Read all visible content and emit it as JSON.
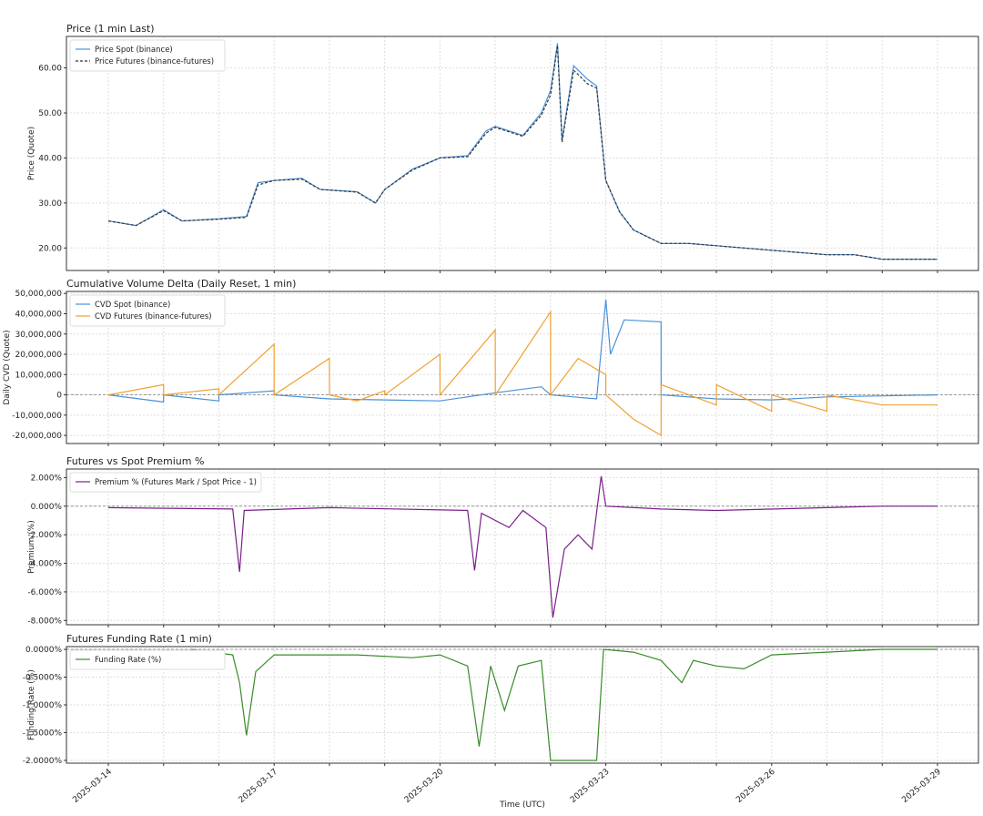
{
  "chart_data": [
    {
      "type": "line",
      "title": "Price (1 min Last)",
      "xlabel": "",
      "ylabel": "Price (Quote)",
      "ylim": [
        15,
        67
      ],
      "yticks": [
        "20.00",
        "30.00",
        "40.00",
        "50.00",
        "60.00"
      ],
      "ytick_values": [
        20,
        30,
        40,
        50,
        60
      ],
      "grid": true,
      "legend": "top-left",
      "series": [
        {
          "name": "Price Spot (binance)",
          "color": "#4a90d9",
          "style": "solid",
          "points": [
            [
              "2025-03-14T00:00",
              26
            ],
            [
              "2025-03-14T12:00",
              25
            ],
            [
              "2025-03-15T00:00",
              28.5
            ],
            [
              "2025-03-15T08:00",
              26
            ],
            [
              "2025-03-16T00:00",
              26.5
            ],
            [
              "2025-03-16T12:00",
              27
            ],
            [
              "2025-03-16T17:00",
              34.5
            ],
            [
              "2025-03-17T00:00",
              35
            ],
            [
              "2025-03-17T12:00",
              35.5
            ],
            [
              "2025-03-17T20:00",
              33
            ],
            [
              "2025-03-18T12:00",
              32.5
            ],
            [
              "2025-03-18T20:00",
              30
            ],
            [
              "2025-03-19T00:00",
              33
            ],
            [
              "2025-03-19T12:00",
              37.5
            ],
            [
              "2025-03-20T00:00",
              40
            ],
            [
              "2025-03-20T12:00",
              40.5
            ],
            [
              "2025-03-20T20:00",
              46
            ],
            [
              "2025-03-21T00:00",
              47
            ],
            [
              "2025-03-21T12:00",
              45
            ],
            [
              "2025-03-21T20:00",
              50
            ],
            [
              "2025-03-22T00:00",
              55
            ],
            [
              "2025-03-22T03:00",
              65.5
            ],
            [
              "2025-03-22T05:00",
              44
            ],
            [
              "2025-03-22T10:00",
              60.5
            ],
            [
              "2025-03-22T16:00",
              57.5
            ],
            [
              "2025-03-22T20:00",
              56
            ],
            [
              "2025-03-23T00:00",
              35
            ],
            [
              "2025-03-23T06:00",
              28
            ],
            [
              "2025-03-23T12:00",
              24
            ],
            [
              "2025-03-24T00:00",
              21
            ],
            [
              "2025-03-24T12:00",
              21
            ],
            [
              "2025-03-25T00:00",
              20.5
            ],
            [
              "2025-03-26T00:00",
              19.5
            ],
            [
              "2025-03-27T00:00",
              18.5
            ],
            [
              "2025-03-27T12:00",
              18.5
            ],
            [
              "2025-03-28T00:00",
              17.5
            ],
            [
              "2025-03-29T00:00",
              17.5
            ]
          ]
        },
        {
          "name": "Price Futures (binance-futures)",
          "color": "#333333",
          "style": "dashed",
          "points": [
            [
              "2025-03-14T00:00",
              26
            ],
            [
              "2025-03-14T12:00",
              25
            ],
            [
              "2025-03-15T00:00",
              28.3
            ],
            [
              "2025-03-15T08:00",
              26
            ],
            [
              "2025-03-16T00:00",
              26.4
            ],
            [
              "2025-03-16T12:00",
              26.8
            ],
            [
              "2025-03-16T17:00",
              34
            ],
            [
              "2025-03-17T00:00",
              35
            ],
            [
              "2025-03-17T12:00",
              35.3
            ],
            [
              "2025-03-17T20:00",
              33
            ],
            [
              "2025-03-18T12:00",
              32.4
            ],
            [
              "2025-03-18T20:00",
              30
            ],
            [
              "2025-03-19T00:00",
              33
            ],
            [
              "2025-03-19T12:00",
              37.3
            ],
            [
              "2025-03-20T00:00",
              40
            ],
            [
              "2025-03-20T12:00",
              40.3
            ],
            [
              "2025-03-20T20:00",
              45.5
            ],
            [
              "2025-03-21T00:00",
              46.8
            ],
            [
              "2025-03-21T12:00",
              44.8
            ],
            [
              "2025-03-21T20:00",
              49.5
            ],
            [
              "2025-03-22T00:00",
              54
            ],
            [
              "2025-03-22T03:00",
              65
            ],
            [
              "2025-03-22T05:00",
              43.5
            ],
            [
              "2025-03-22T10:00",
              59.5
            ],
            [
              "2025-03-22T16:00",
              56.5
            ],
            [
              "2025-03-22T20:00",
              55.5
            ],
            [
              "2025-03-23T00:00",
              35
            ],
            [
              "2025-03-23T06:00",
              28
            ],
            [
              "2025-03-23T12:00",
              24
            ],
            [
              "2025-03-24T00:00",
              21
            ],
            [
              "2025-03-24T12:00",
              21
            ],
            [
              "2025-03-25T00:00",
              20.5
            ],
            [
              "2025-03-26T00:00",
              19.5
            ],
            [
              "2025-03-27T00:00",
              18.5
            ],
            [
              "2025-03-27T12:00",
              18.5
            ],
            [
              "2025-03-28T00:00",
              17.5
            ],
            [
              "2025-03-29T00:00",
              17.5
            ]
          ]
        }
      ]
    },
    {
      "type": "line",
      "title": "Cumulative Volume Delta (Daily Reset, 1 min)",
      "xlabel": "",
      "ylabel": "Daily CVD (Quote)",
      "ylim": [
        -24000000,
        51000000
      ],
      "yticks": [
        "-20,000,000",
        "-10,000,000",
        "0",
        "10,000,000",
        "20,000,000",
        "30,000,000",
        "40,000,000",
        "50,000,000"
      ],
      "ytick_values": [
        -20000000,
        -10000000,
        0,
        10000000,
        20000000,
        30000000,
        40000000,
        50000000
      ],
      "grid": true,
      "legend": "top-left",
      "zero_line": true,
      "series": [
        {
          "name": "CVD Spot (binance)",
          "color": "#4a90d9",
          "points": [
            [
              "2025-03-14T00:00",
              0
            ],
            [
              "2025-03-15T00:00",
              -3500000
            ],
            [
              "2025-03-15T00:01",
              0
            ],
            [
              "2025-03-16T00:00",
              -3000000
            ],
            [
              "2025-03-16T00:01",
              0
            ],
            [
              "2025-03-17T00:00",
              2000000
            ],
            [
              "2025-03-17T00:01",
              0
            ],
            [
              "2025-03-18T00:00",
              -2000000
            ],
            [
              "2025-03-19T00:00",
              -2500000
            ],
            [
              "2025-03-20T00:00",
              -3000000
            ],
            [
              "2025-03-21T00:00",
              1000000
            ],
            [
              "2025-03-21T20:00",
              4000000
            ],
            [
              "2025-03-22T00:00",
              0
            ],
            [
              "2025-03-22T20:00",
              -2000000
            ],
            [
              "2025-03-23T00:00",
              47000000
            ],
            [
              "2025-03-23T02:00",
              20000000
            ],
            [
              "2025-03-23T08:00",
              37000000
            ],
            [
              "2025-03-24T00:00",
              36000000
            ],
            [
              "2025-03-24T00:01",
              0
            ],
            [
              "2025-03-25T00:00",
              -2000000
            ],
            [
              "2025-03-26T00:00",
              -2500000
            ],
            [
              "2025-03-27T00:00",
              -1000000
            ],
            [
              "2025-03-29T00:00",
              0
            ]
          ]
        },
        {
          "name": "CVD Futures (binance-futures)",
          "color": "#f0a030",
          "points": [
            [
              "2025-03-14T00:00",
              0
            ],
            [
              "2025-03-15T00:00",
              5000000
            ],
            [
              "2025-03-15T00:01",
              0
            ],
            [
              "2025-03-16T00:00",
              3000000
            ],
            [
              "2025-03-16T00:01",
              0
            ],
            [
              "2025-03-17T00:00",
              25000000
            ],
            [
              "2025-03-17T00:01",
              0
            ],
            [
              "2025-03-18T00:00",
              18000000
            ],
            [
              "2025-03-18T00:01",
              0
            ],
            [
              "2025-03-18T12:00",
              -3000000
            ],
            [
              "2025-03-19T00:00",
              2000000
            ],
            [
              "2025-03-19T00:01",
              0
            ],
            [
              "2025-03-20T00:00",
              20000000
            ],
            [
              "2025-03-20T00:01",
              0
            ],
            [
              "2025-03-21T00:00",
              32000000
            ],
            [
              "2025-03-21T00:01",
              0
            ],
            [
              "2025-03-22T00:00",
              41000000
            ],
            [
              "2025-03-22T00:01",
              0
            ],
            [
              "2025-03-22T12:00",
              18000000
            ],
            [
              "2025-03-23T00:00",
              10000000
            ],
            [
              "2025-03-23T00:01",
              0
            ],
            [
              "2025-03-23T12:00",
              -12000000
            ],
            [
              "2025-03-24T00:00",
              -20000000
            ],
            [
              "2025-03-24T00:01",
              5000000
            ],
            [
              "2025-03-25T00:00",
              -5000000
            ],
            [
              "2025-03-25T00:01",
              5000000
            ],
            [
              "2025-03-26T00:00",
              -8000000
            ],
            [
              "2025-03-26T00:01",
              0
            ],
            [
              "2025-03-27T00:00",
              -8000000
            ],
            [
              "2025-03-27T00:01",
              0
            ],
            [
              "2025-03-28T00:00",
              -5000000
            ],
            [
              "2025-03-29T00:00",
              -5000000
            ]
          ]
        }
      ]
    },
    {
      "type": "line",
      "title": "Futures vs Spot Premium %",
      "xlabel": "",
      "ylabel": "Premium (%)",
      "ylim": [
        -8.3,
        2.6
      ],
      "yticks": [
        "-8.000%",
        "-6.000%",
        "-4.000%",
        "-2.000%",
        "0.000%",
        "2.000%"
      ],
      "ytick_values": [
        -8,
        -6,
        -4,
        -2,
        0,
        2
      ],
      "grid": true,
      "legend": "top-left",
      "zero_line": true,
      "series": [
        {
          "name": "Premium % (Futures Mark / Spot Price - 1)",
          "color": "#7a1f8a",
          "points": [
            [
              "2025-03-14T00:00",
              -0.1
            ],
            [
              "2025-03-16T06:00",
              -0.2
            ],
            [
              "2025-03-16T09:00",
              -4.6
            ],
            [
              "2025-03-16T11:00",
              -0.3
            ],
            [
              "2025-03-18T00:00",
              -0.1
            ],
            [
              "2025-03-20T12:00",
              -0.3
            ],
            [
              "2025-03-20T15:00",
              -4.5
            ],
            [
              "2025-03-20T18:00",
              -0.5
            ],
            [
              "2025-03-21T06:00",
              -1.5
            ],
            [
              "2025-03-21T12:00",
              -0.3
            ],
            [
              "2025-03-21T22:00",
              -1.5
            ],
            [
              "2025-03-22T01:00",
              -7.8
            ],
            [
              "2025-03-22T06:00",
              -3
            ],
            [
              "2025-03-22T12:00",
              -2
            ],
            [
              "2025-03-22T18:00",
              -3
            ],
            [
              "2025-03-22T22:00",
              2.1
            ],
            [
              "2025-03-23T00:00",
              0
            ],
            [
              "2025-03-24T00:00",
              -0.2
            ],
            [
              "2025-03-25T00:00",
              -0.3
            ],
            [
              "2025-03-27T00:00",
              -0.1
            ],
            [
              "2025-03-28T00:00",
              0
            ],
            [
              "2025-03-29T00:00",
              0
            ]
          ]
        }
      ]
    },
    {
      "type": "line",
      "title": "Futures Funding Rate (1 min)",
      "xlabel": "Time (UTC)",
      "ylabel": "Funding Rate (%)",
      "ylim": [
        -2.05,
        0.05
      ],
      "yticks": [
        "-2.0000%",
        "-1.5000%",
        "-1.0000%",
        "-0.5000%",
        "0.0000%"
      ],
      "ytick_values": [
        -2,
        -1.5,
        -1,
        -0.5,
        0
      ],
      "grid": true,
      "legend": "top-left",
      "zero_line": true,
      "xticks": [
        "2025-03-14",
        "2025-03-17",
        "2025-03-20",
        "2025-03-23",
        "2025-03-26",
        "2025-03-29"
      ],
      "series": [
        {
          "name": "Funding Rate (%)",
          "color": "#3a8a2a",
          "points": [
            [
              "2025-03-15T12:00",
              0
            ],
            [
              "2025-03-16T06:00",
              -0.1
            ],
            [
              "2025-03-16T09:00",
              -0.6
            ],
            [
              "2025-03-16T12:00",
              -1.55
            ],
            [
              "2025-03-16T16:00",
              -0.4
            ],
            [
              "2025-03-17T00:00",
              -0.1
            ],
            [
              "2025-03-18T12:00",
              -0.1
            ],
            [
              "2025-03-19T12:00",
              -0.15
            ],
            [
              "2025-03-20T00:00",
              -0.1
            ],
            [
              "2025-03-20T12:00",
              -0.3
            ],
            [
              "2025-03-20T17:00",
              -1.75
            ],
            [
              "2025-03-20T22:00",
              -0.3
            ],
            [
              "2025-03-21T04:00",
              -1.1
            ],
            [
              "2025-03-21T10:00",
              -0.3
            ],
            [
              "2025-03-21T20:00",
              -0.2
            ],
            [
              "2025-03-22T00:00",
              -2
            ],
            [
              "2025-03-22T20:00",
              -2
            ],
            [
              "2025-03-22T23:00",
              0
            ],
            [
              "2025-03-23T12:00",
              -0.05
            ],
            [
              "2025-03-24T00:00",
              -0.2
            ],
            [
              "2025-03-24T09:00",
              -0.6
            ],
            [
              "2025-03-24T14:00",
              -0.2
            ],
            [
              "2025-03-25T00:00",
              -0.3
            ],
            [
              "2025-03-25T12:00",
              -0.35
            ],
            [
              "2025-03-26T00:00",
              -0.1
            ],
            [
              "2025-03-27T00:00",
              -0.05
            ],
            [
              "2025-03-28T00:00",
              0
            ],
            [
              "2025-03-29T00:00",
              0
            ]
          ]
        }
      ]
    }
  ]
}
